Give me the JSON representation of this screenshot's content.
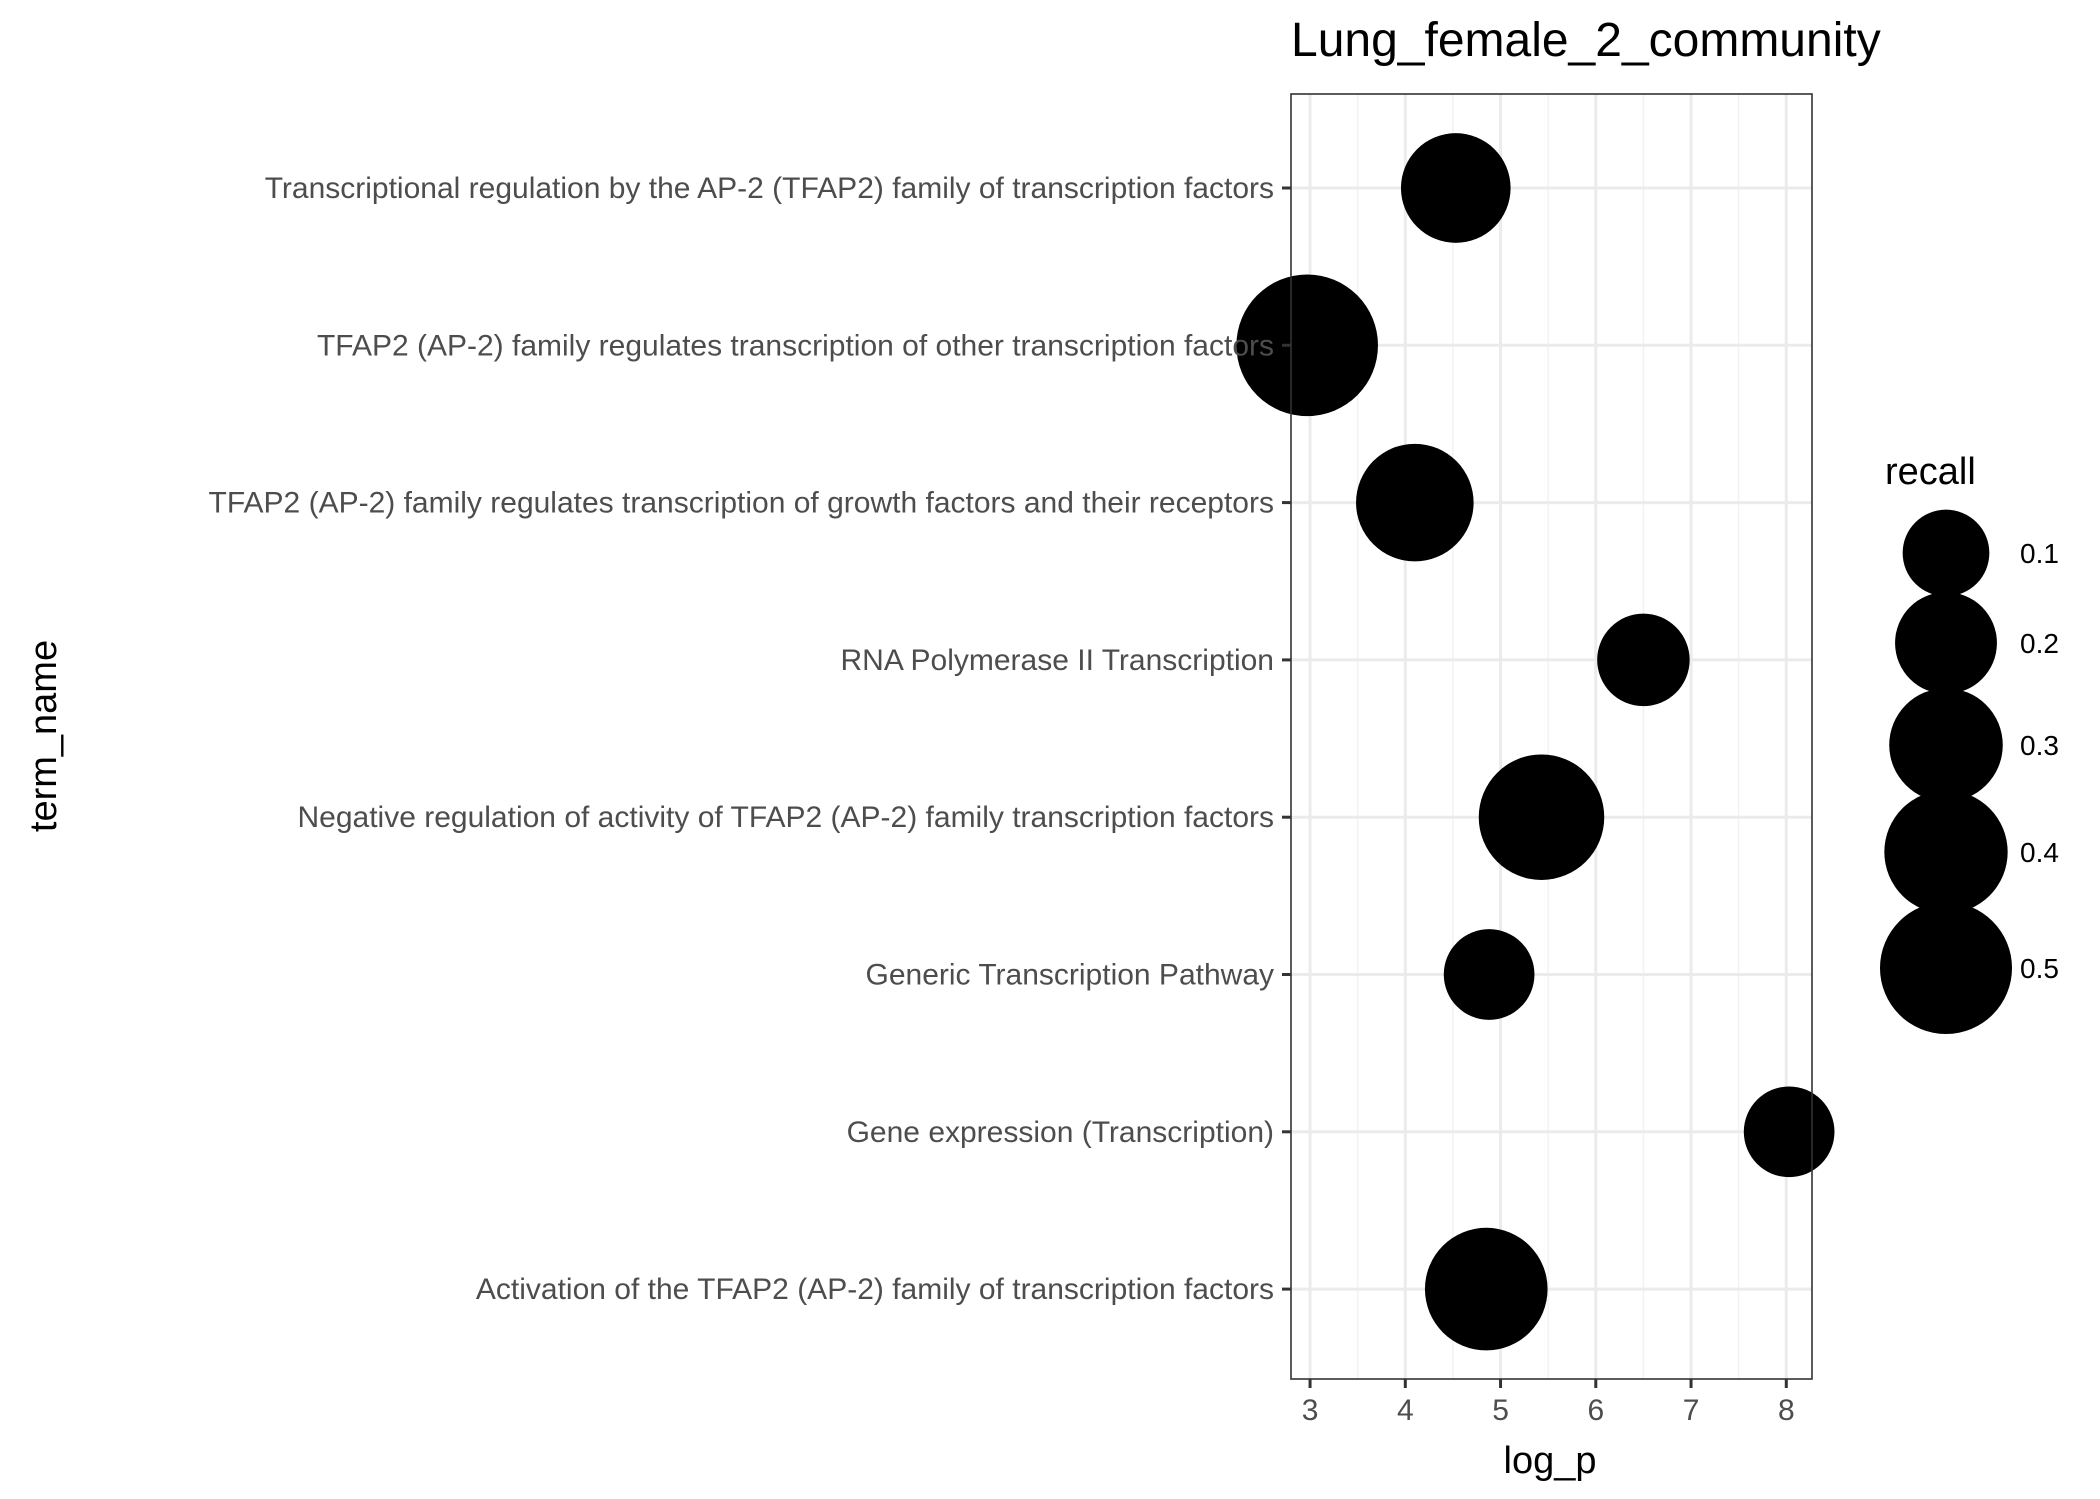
{
  "chart_data": {
    "type": "scatter",
    "title": "Lung_female_2_community",
    "xlabel": "log_p",
    "ylabel": "term_name",
    "xlim": [
      2.8,
      8.27
    ],
    "x_ticks": [
      3,
      4,
      5,
      6,
      7,
      8
    ],
    "grid": true,
    "categories": [
      "Transcriptional regulation by the AP-2 (TFAP2) family of transcription factors",
      "TFAP2 (AP-2) family regulates transcription of other transcription factors",
      "TFAP2 (AP-2) family regulates transcription of growth factors and their receptors",
      "RNA Polymerase II Transcription",
      "Negative regulation of activity of TFAP2 (AP-2) family transcription factors",
      "Generic Transcription Pathway",
      "Gene expression (Transcription)",
      "Activation of the TFAP2 (AP-2) family of transcription factors"
    ],
    "points": [
      {
        "term": "Transcriptional regulation by the AP-2 (TFAP2) family of transcription factors",
        "log_p": 4.53,
        "recall": 0.23
      },
      {
        "term": "TFAP2 (AP-2) family regulates transcription of other transcription factors",
        "log_p": 2.97,
        "recall": 0.57
      },
      {
        "term": "TFAP2 (AP-2) family regulates transcription of growth factors and their receptors",
        "log_p": 4.1,
        "recall": 0.3
      },
      {
        "term": "RNA Polymerase II Transcription",
        "log_p": 6.5,
        "recall": 0.11
      },
      {
        "term": "Negative regulation of activity of TFAP2 (AP-2) family transcription factors",
        "log_p": 5.43,
        "recall": 0.38
      },
      {
        "term": "Generic Transcription Pathway",
        "log_p": 4.88,
        "recall": 0.1
      },
      {
        "term": "Gene expression (Transcription)",
        "log_p": 8.03,
        "recall": 0.1
      },
      {
        "term": "Activation of the TFAP2 (AP-2) family of transcription factors",
        "log_p": 4.85,
        "recall": 0.35
      }
    ],
    "legend": {
      "title": "recall",
      "placement": "right",
      "entries": [
        {
          "label": "0.1",
          "value": 0.1
        },
        {
          "label": "0.2",
          "value": 0.2
        },
        {
          "label": "0.3",
          "value": 0.3
        },
        {
          "label": "0.4",
          "value": 0.4
        },
        {
          "label": "0.5",
          "value": 0.5
        }
      ]
    },
    "colors": {
      "point": "#000000",
      "panel_border": "#333333",
      "grid_major": "#ebebeb",
      "grid_minor": "#f2f2f2",
      "tick_text": "#4d4d4d"
    }
  }
}
